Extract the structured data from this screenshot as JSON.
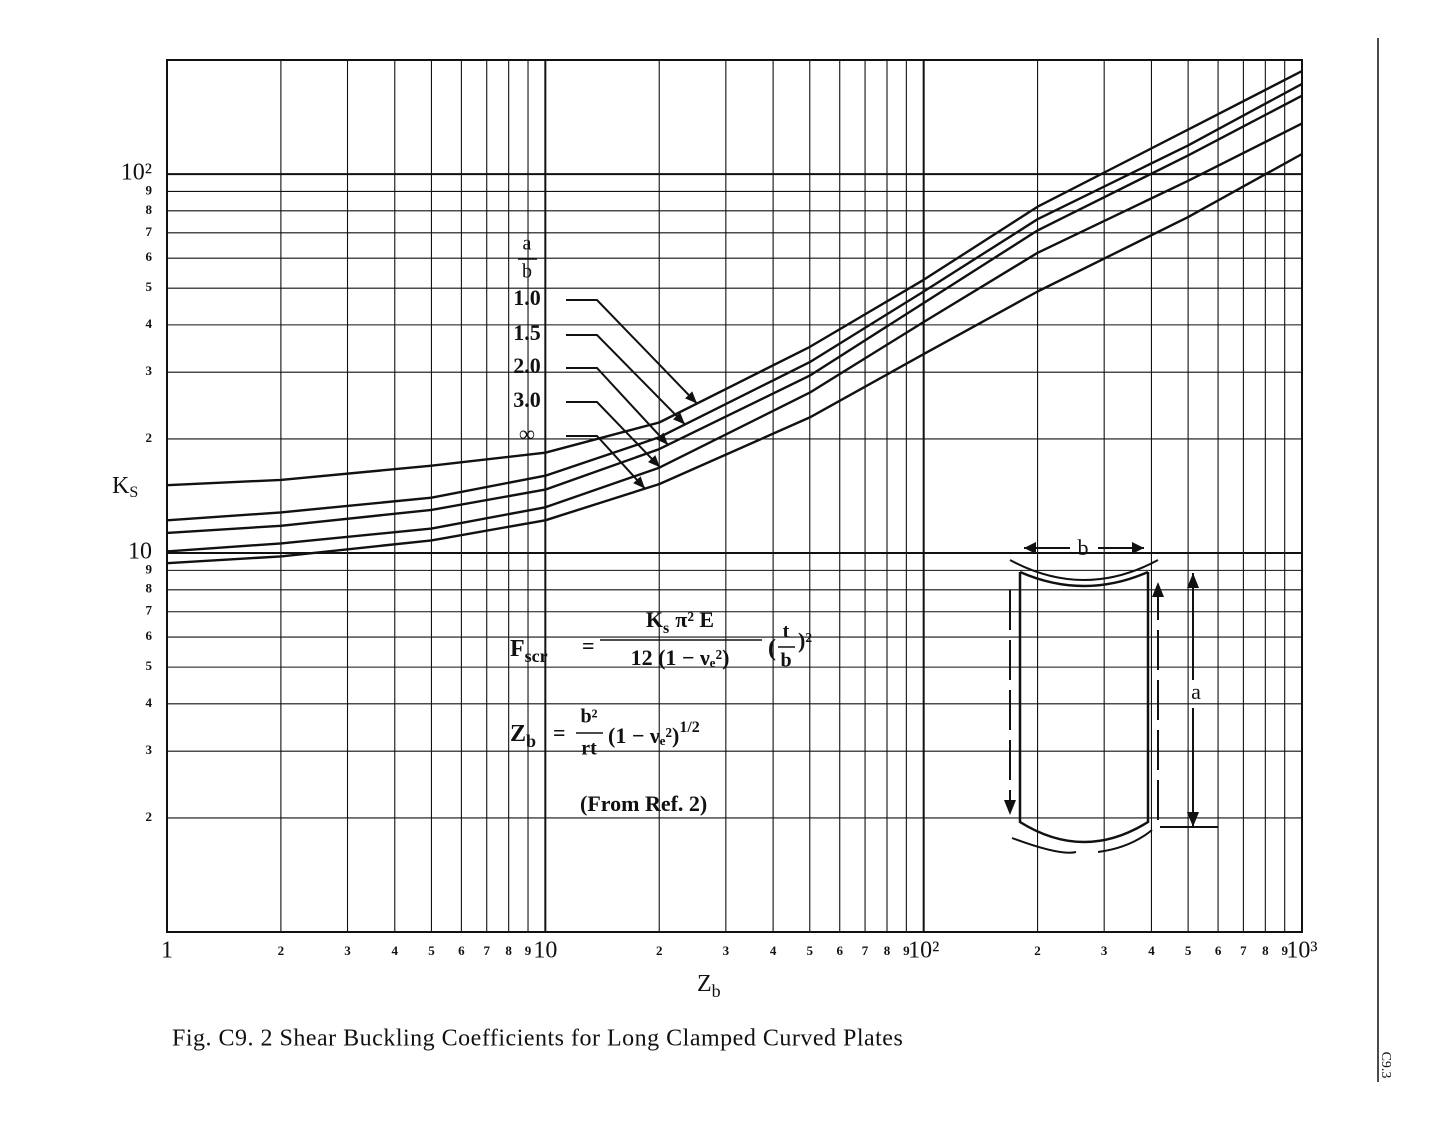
{
  "chart_data": {
    "type": "line",
    "title": "Fig. C9. 2  Shear Buckling Coefficients for Long Clamped Curved Plates",
    "x_label": {
      "text": "Z",
      "sub": "b"
    },
    "y_label": {
      "text": "K",
      "sub": "S"
    },
    "x_scale": "log",
    "y_scale": "log",
    "grid": true,
    "xlim": [
      1,
      1000
    ],
    "ylim": [
      1,
      200
    ],
    "xticks": [
      1,
      2,
      3,
      4,
      5,
      6,
      7,
      8,
      9,
      10,
      {
        "value": 20,
        "label": "2"
      },
      {
        "value": 30,
        "label": "3"
      },
      {
        "value": 40,
        "label": "4"
      },
      {
        "value": 50,
        "label": "5"
      },
      {
        "value": 60,
        "label": "6"
      },
      {
        "value": 70,
        "label": "7"
      },
      {
        "value": 80,
        "label": "8"
      },
      {
        "value": 90,
        "label": "9"
      },
      {
        "value": 100,
        "label": "10²"
      },
      {
        "value": 200,
        "label": "2"
      },
      {
        "value": 300,
        "label": "3"
      },
      {
        "value": 400,
        "label": "4"
      },
      {
        "value": 500,
        "label": "5"
      },
      {
        "value": 600,
        "label": "6"
      },
      {
        "value": 700,
        "label": "7"
      },
      {
        "value": 800,
        "label": "8"
      },
      {
        "value": 900,
        "label": "9"
      },
      {
        "value": 1000,
        "label": "10³"
      }
    ],
    "yticks": [
      2,
      3,
      4,
      5,
      6,
      7,
      8,
      9,
      10,
      {
        "value": 20,
        "label": "2"
      },
      {
        "value": 30,
        "label": "3"
      },
      {
        "value": 40,
        "label": "4"
      },
      {
        "value": 50,
        "label": "5"
      },
      {
        "value": 60,
        "label": "6"
      },
      {
        "value": 70,
        "label": "7"
      },
      {
        "value": 80,
        "label": "8"
      },
      {
        "value": 90,
        "label": "9"
      },
      {
        "value": 100,
        "label": "10²"
      }
    ],
    "x": [
      1,
      2,
      5,
      10,
      20,
      50,
      100,
      200,
      500,
      1000
    ],
    "legend_title": {
      "top": "a",
      "bottom": "b"
    },
    "series": [
      {
        "name": "1.0",
        "color": "#111111",
        "values": [
          15.1,
          15.6,
          17.0,
          18.4,
          22.1,
          35,
          52.6,
          82,
          131,
          187
        ]
      },
      {
        "name": "1.5",
        "color": "#111111",
        "values": [
          12.2,
          12.8,
          14.0,
          16.0,
          20.2,
          31.9,
          49,
          76,
          119,
          173
        ]
      },
      {
        "name": "2.0",
        "color": "#111111",
        "values": [
          11.3,
          11.8,
          13.0,
          14.7,
          18.8,
          29.4,
          45.7,
          71,
          112,
          161
        ]
      },
      {
        "name": "3.0",
        "color": "#111111",
        "values": [
          10.1,
          10.6,
          11.6,
          13.2,
          16.8,
          26.5,
          40.7,
          62,
          96,
          136
        ]
      },
      {
        "name": "∞",
        "color": "#111111",
        "values": [
          9.4,
          9.8,
          10.8,
          12.2,
          15.2,
          22.8,
          33.5,
          49,
          77,
          113
        ]
      }
    ]
  },
  "annotations": {
    "formula_1": {
      "lhs": "F",
      "lhs_sub": "scr",
      "equals": "=",
      "num": "K",
      "num_sub": "s",
      "num_rest": "π² E",
      "den": "12 (1 − νₑ²)",
      "factor_open": "(",
      "factor_num": "t",
      "factor_den": "b",
      "factor_close": ")²"
    },
    "formula_2": {
      "lhs": "Z",
      "lhs_sub": "b",
      "equals": "=",
      "num": "b²",
      "den": "rt",
      "tail": "(1 − νₑ²)",
      "tail_sup": "1/2"
    },
    "source": "(From Ref. 2)",
    "diagram": {
      "width_label": "b",
      "length_label": "a"
    }
  },
  "page_number": "C9.3"
}
